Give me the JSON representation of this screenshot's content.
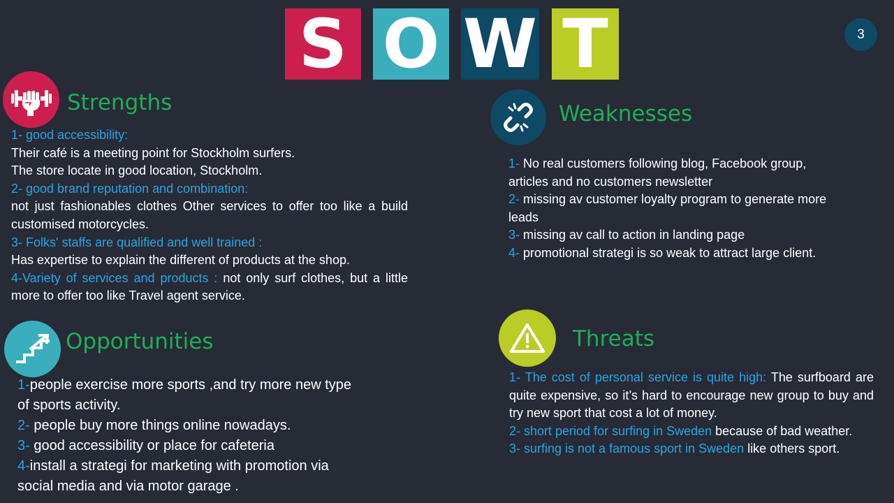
{
  "colors": {
    "background": "#262b36",
    "tile_s": "#cc1f4f",
    "tile_o": "#3aaebd",
    "tile_w": "#0e4965",
    "tile_t": "#bacc26",
    "heading": "#1fae55",
    "accent_text": "#29a4e0",
    "body_text": "#ffffff"
  },
  "title_tiles": [
    "S",
    "O",
    "W",
    "T"
  ],
  "page_number": "3",
  "strengths": {
    "icon": "fist-dumbbell-icon",
    "heading": "Strengths",
    "items": [
      {
        "title": "1- good accessibility:",
        "lines": [
          "Their café is a meeting point for Stockholm surfers.",
          "The store locate in good location, Stockholm."
        ]
      },
      {
        "title": "2- good brand reputation and combination:",
        "body": "not just fashionables clothes Other services to offer too like a build customised motorcycles."
      },
      {
        "title": "3- Folks' staffs are qualified and well trained :",
        "body": "Has expertise to explain the different  of products at the shop."
      },
      {
        "title": "4-Variety  of services and products :",
        "body": " not only surf clothes, but a little more to offer too like Travel agent service."
      }
    ]
  },
  "weaknesses": {
    "icon": "broken-link-icon",
    "heading": "Weaknesses",
    "items": [
      {
        "num": "1-",
        "text": " No real customers following blog, Facebook group, articles and no customers newsletter"
      },
      {
        "num": "2-",
        "text": " missing av customer loyalty program  to generate more leads"
      },
      {
        "num": "3-",
        "text": " missing av call to action in landing page"
      },
      {
        "num": "4-",
        "text": " promotional strategi is so weak to attract large client."
      }
    ]
  },
  "opportunities": {
    "icon": "stairs-up-arrow-icon",
    "heading": "Opportunities",
    "items": [
      {
        "num": "1-",
        "text": "people exercise more sports ,and try more new type of sports activity."
      },
      {
        "num": "2-",
        "text": " people buy more things online nowadays."
      },
      {
        "num": "3-",
        "text": " good accessibility or place for cafeteria"
      },
      {
        "num": "4-",
        "text": "install a strategi for marketing  with promotion via  social media and via motor garage ."
      }
    ]
  },
  "threats": {
    "icon": "warning-triangle-icon",
    "heading": "Threats",
    "items": [
      {
        "accent": "1- The cost of personal service is quite high:",
        "text": " The surfboard are quite expensive, so it’s hard to encourage new group to buy and try new sport that cost a lot of money."
      },
      {
        "accent": " 2- short period for surfing  in Sweden",
        "text": " because of bad weather."
      },
      {
        "accent": "3- surfing is not a famous  sport in Sweden",
        "text": " like others sport."
      }
    ]
  }
}
